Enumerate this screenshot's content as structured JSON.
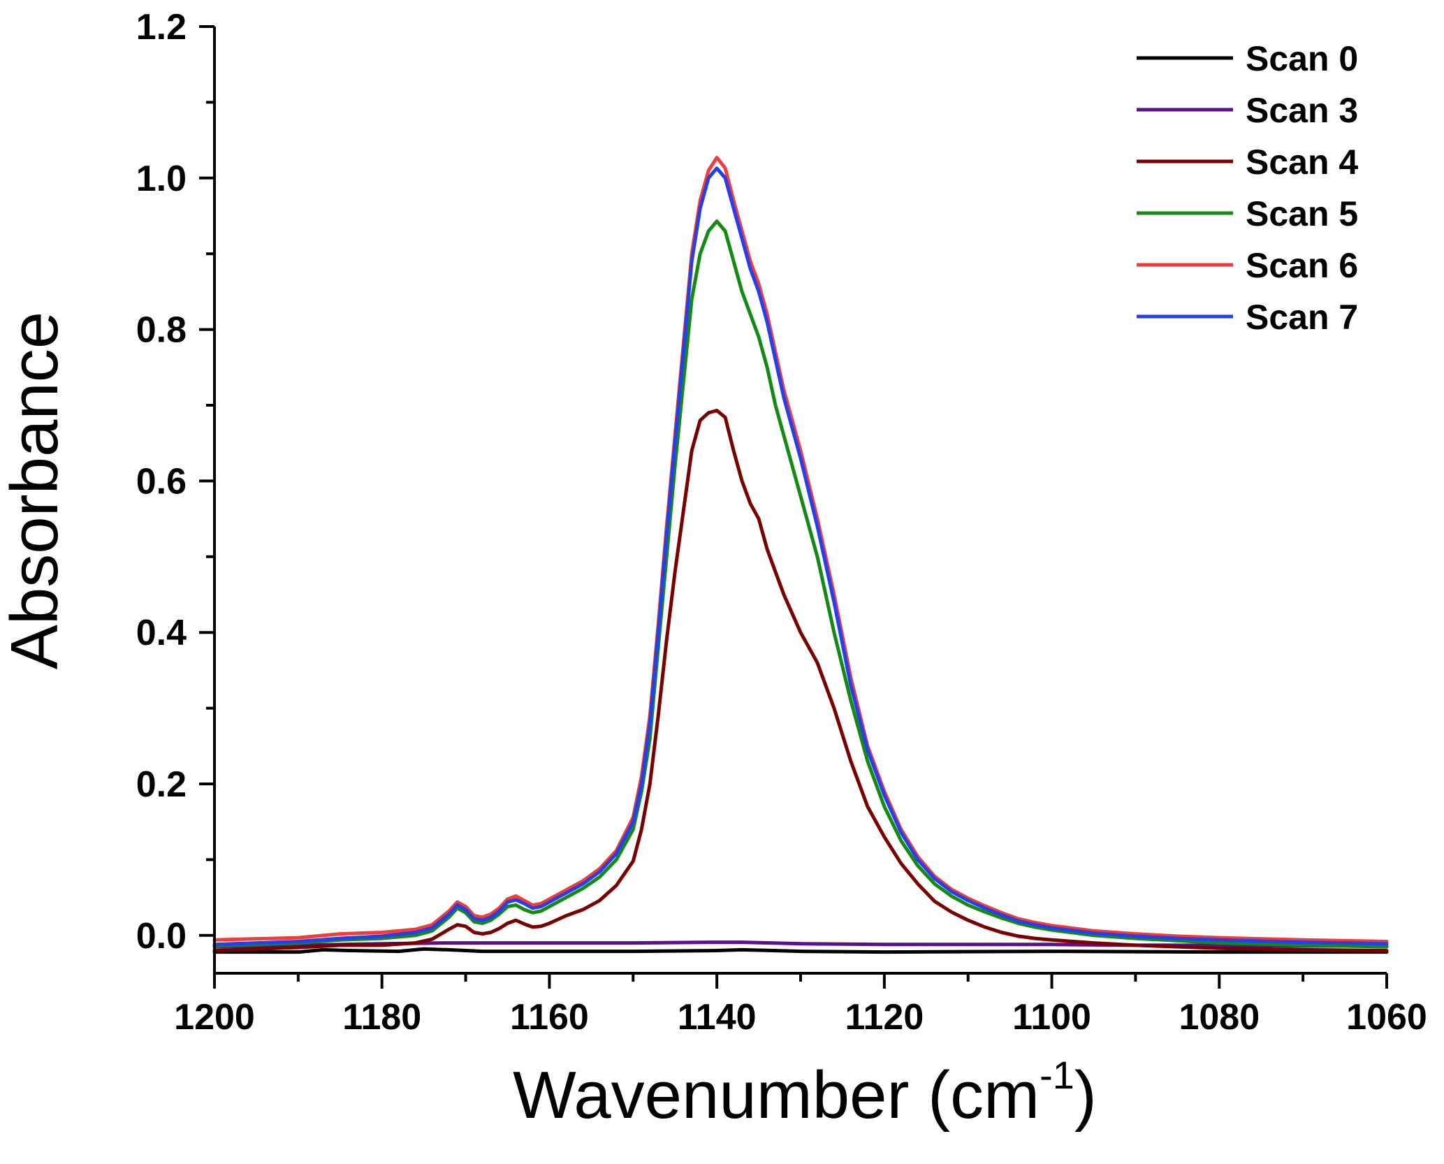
{
  "chart_data": {
    "type": "line",
    "title": "",
    "xlabel": "Wavenumber (cm",
    "xlabel_sup": "-1",
    "xlabel_close": ")",
    "ylabel": "Absorbance",
    "xlim": [
      1200,
      1060
    ],
    "ylim": [
      -0.05,
      1.2
    ],
    "x_reversed": true,
    "xticks": [
      1200,
      1180,
      1160,
      1140,
      1120,
      1100,
      1080,
      1060
    ],
    "xtick_labels": [
      "1200",
      "1180",
      "1160",
      "1140",
      "1120",
      "1100",
      "1080",
      "1060"
    ],
    "yticks": [
      0.0,
      0.2,
      0.4,
      0.6,
      0.8,
      1.0,
      1.2
    ],
    "ytick_labels": [
      "0.0",
      "0.2",
      "0.4",
      "0.6",
      "0.8",
      "1.0",
      "1.2"
    ],
    "grid": false,
    "legend_position": "top-right",
    "series": [
      {
        "name": "Scan 0",
        "color": "#000000",
        "x": [
          1200,
          1190,
          1187,
          1184,
          1178,
          1175,
          1172,
          1168,
          1160,
          1150,
          1140,
          1137,
          1130,
          1120,
          1100,
          1080,
          1070,
          1060
        ],
        "y": [
          -0.022,
          -0.022,
          -0.019,
          -0.02,
          -0.021,
          -0.018,
          -0.019,
          -0.021,
          -0.021,
          -0.021,
          -0.02,
          -0.019,
          -0.021,
          -0.022,
          -0.021,
          -0.022,
          -0.022,
          -0.022
        ]
      },
      {
        "name": "Scan 3",
        "color": "#5b0f8a",
        "x": [
          1200,
          1190,
          1180,
          1172,
          1165,
          1150,
          1140,
          1137,
          1130,
          1120,
          1110,
          1100,
          1090,
          1080,
          1070,
          1060
        ],
        "y": [
          -0.015,
          -0.013,
          -0.011,
          -0.01,
          -0.01,
          -0.01,
          -0.009,
          -0.009,
          -0.011,
          -0.012,
          -0.012,
          -0.012,
          -0.013,
          -0.013,
          -0.014,
          -0.014
        ]
      },
      {
        "name": "Scan 4",
        "color": "#7a0000",
        "x": [
          1200,
          1190,
          1185,
          1180,
          1176,
          1174,
          1172,
          1171,
          1170,
          1169,
          1168,
          1167,
          1166,
          1165,
          1164,
          1163,
          1162,
          1161,
          1160,
          1158,
          1156,
          1154,
          1152,
          1150,
          1149,
          1148,
          1147,
          1146,
          1145,
          1144,
          1143,
          1142,
          1141,
          1140,
          1139,
          1138,
          1137,
          1136,
          1135,
          1134,
          1133,
          1132,
          1130,
          1128,
          1126,
          1124,
          1122,
          1120,
          1118,
          1116,
          1114,
          1112,
          1110,
          1108,
          1106,
          1104,
          1102,
          1100,
          1095,
          1090,
          1085,
          1080,
          1070,
          1060
        ],
        "y": [
          -0.02,
          -0.016,
          -0.013,
          -0.013,
          -0.01,
          -0.005,
          0.008,
          0.014,
          0.012,
          0.004,
          0.002,
          0.004,
          0.009,
          0.016,
          0.02,
          0.015,
          0.011,
          0.012,
          0.016,
          0.026,
          0.034,
          0.046,
          0.066,
          0.098,
          0.14,
          0.2,
          0.29,
          0.39,
          0.48,
          0.56,
          0.64,
          0.68,
          0.69,
          0.693,
          0.684,
          0.64,
          0.6,
          0.57,
          0.55,
          0.51,
          0.48,
          0.45,
          0.4,
          0.36,
          0.3,
          0.23,
          0.17,
          0.13,
          0.095,
          0.068,
          0.045,
          0.031,
          0.02,
          0.011,
          0.004,
          -0.001,
          -0.004,
          -0.006,
          -0.01,
          -0.013,
          -0.015,
          -0.017,
          -0.019,
          -0.02
        ]
      },
      {
        "name": "Scan 5",
        "color": "#138a13",
        "x": [
          1200,
          1190,
          1185,
          1180,
          1176,
          1174,
          1172,
          1171,
          1170,
          1169,
          1168,
          1167,
          1166,
          1165,
          1164,
          1163,
          1162,
          1161,
          1160,
          1158,
          1156,
          1154,
          1152,
          1150,
          1149,
          1148,
          1147,
          1146,
          1145,
          1144,
          1143,
          1142,
          1141,
          1140,
          1139,
          1138,
          1137,
          1136,
          1135,
          1134,
          1133,
          1132,
          1130,
          1128,
          1126,
          1124,
          1122,
          1120,
          1118,
          1116,
          1114,
          1112,
          1110,
          1108,
          1106,
          1104,
          1102,
          1100,
          1095,
          1090,
          1085,
          1080,
          1070,
          1060
        ],
        "y": [
          -0.014,
          -0.01,
          -0.006,
          -0.004,
          0.0,
          0.006,
          0.024,
          0.036,
          0.03,
          0.018,
          0.016,
          0.02,
          0.028,
          0.038,
          0.04,
          0.034,
          0.03,
          0.032,
          0.038,
          0.05,
          0.062,
          0.077,
          0.1,
          0.14,
          0.19,
          0.26,
          0.38,
          0.5,
          0.62,
          0.73,
          0.84,
          0.9,
          0.93,
          0.943,
          0.93,
          0.89,
          0.85,
          0.82,
          0.79,
          0.75,
          0.7,
          0.66,
          0.58,
          0.5,
          0.4,
          0.31,
          0.23,
          0.17,
          0.125,
          0.092,
          0.068,
          0.052,
          0.04,
          0.031,
          0.023,
          0.016,
          0.011,
          0.007,
          0.0,
          -0.004,
          -0.007,
          -0.01,
          -0.013,
          -0.015
        ]
      },
      {
        "name": "Scan 6",
        "color": "#f03c3c",
        "x": [
          1200,
          1190,
          1185,
          1180,
          1176,
          1174,
          1172,
          1171,
          1170,
          1169,
          1168,
          1167,
          1166,
          1165,
          1164,
          1163,
          1162,
          1161,
          1160,
          1158,
          1156,
          1154,
          1152,
          1150,
          1149,
          1148,
          1147,
          1146,
          1145,
          1144,
          1143,
          1142,
          1141,
          1140,
          1139,
          1138,
          1137,
          1136,
          1135,
          1134,
          1133,
          1132,
          1130,
          1128,
          1126,
          1124,
          1122,
          1120,
          1118,
          1116,
          1114,
          1112,
          1110,
          1108,
          1106,
          1104,
          1102,
          1100,
          1095,
          1090,
          1085,
          1080,
          1070,
          1060
        ],
        "y": [
          -0.006,
          -0.003,
          0.002,
          0.004,
          0.008,
          0.014,
          0.032,
          0.044,
          0.038,
          0.026,
          0.024,
          0.028,
          0.036,
          0.048,
          0.052,
          0.046,
          0.04,
          0.042,
          0.048,
          0.06,
          0.072,
          0.088,
          0.112,
          0.156,
          0.21,
          0.29,
          0.41,
          0.54,
          0.66,
          0.78,
          0.9,
          0.97,
          1.01,
          1.027,
          1.013,
          0.97,
          0.93,
          0.89,
          0.86,
          0.82,
          0.77,
          0.72,
          0.64,
          0.55,
          0.45,
          0.34,
          0.25,
          0.19,
          0.14,
          0.104,
          0.078,
          0.061,
          0.049,
          0.039,
          0.03,
          0.022,
          0.017,
          0.013,
          0.006,
          0.002,
          -0.001,
          -0.003,
          -0.006,
          -0.008
        ]
      },
      {
        "name": "Scan 7",
        "color": "#2540e8",
        "x": [
          1200,
          1190,
          1185,
          1180,
          1176,
          1174,
          1172,
          1171,
          1170,
          1169,
          1168,
          1167,
          1166,
          1165,
          1164,
          1163,
          1162,
          1161,
          1160,
          1158,
          1156,
          1154,
          1152,
          1150,
          1149,
          1148,
          1147,
          1146,
          1145,
          1144,
          1143,
          1142,
          1141,
          1140,
          1139,
          1138,
          1137,
          1136,
          1135,
          1134,
          1133,
          1132,
          1130,
          1128,
          1126,
          1124,
          1122,
          1120,
          1118,
          1116,
          1114,
          1112,
          1110,
          1108,
          1106,
          1104,
          1102,
          1100,
          1095,
          1090,
          1085,
          1080,
          1070,
          1060
        ],
        "y": [
          -0.012,
          -0.008,
          -0.004,
          -0.001,
          0.004,
          0.01,
          0.028,
          0.04,
          0.034,
          0.022,
          0.02,
          0.024,
          0.032,
          0.044,
          0.047,
          0.042,
          0.036,
          0.038,
          0.044,
          0.056,
          0.068,
          0.084,
          0.108,
          0.15,
          0.2,
          0.28,
          0.4,
          0.53,
          0.65,
          0.77,
          0.89,
          0.96,
          1.0,
          1.013,
          1.0,
          0.96,
          0.92,
          0.88,
          0.85,
          0.81,
          0.76,
          0.71,
          0.63,
          0.54,
          0.44,
          0.33,
          0.245,
          0.185,
          0.136,
          0.1,
          0.075,
          0.058,
          0.046,
          0.036,
          0.027,
          0.019,
          0.014,
          0.01,
          0.003,
          -0.001,
          -0.004,
          -0.006,
          -0.009,
          -0.011
        ]
      }
    ]
  }
}
